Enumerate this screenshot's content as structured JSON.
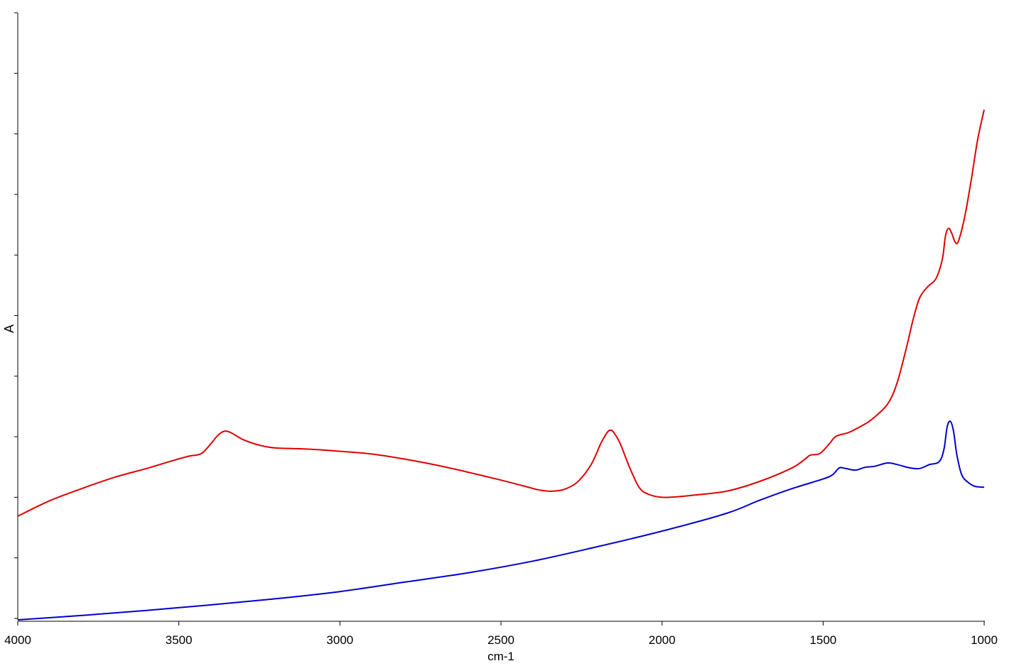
{
  "chart_data": {
    "type": "line",
    "title": "",
    "xlabel": "cm-1",
    "ylabel": "A",
    "x_reversed": true,
    "xlim": [
      4000,
      1000
    ],
    "ylim": [
      0,
      1
    ],
    "x_ticks": [
      "4000",
      "3500",
      "3000",
      "2500",
      "2000",
      "1500",
      "1000"
    ],
    "y_tick_labels_shown": false,
    "y_tick_count": 11,
    "grid": false,
    "legend": "none",
    "series": [
      {
        "color": "#e00000",
        "points": [
          [
            4000,
            0.187
          ],
          [
            3900,
            0.215
          ],
          [
            3800,
            0.237
          ],
          [
            3700,
            0.257
          ],
          [
            3600,
            0.273
          ],
          [
            3520,
            0.287
          ],
          [
            3470,
            0.295
          ],
          [
            3430,
            0.3
          ],
          [
            3400,
            0.318
          ],
          [
            3380,
            0.332
          ],
          [
            3360,
            0.34
          ],
          [
            3340,
            0.338
          ],
          [
            3300,
            0.325
          ],
          [
            3250,
            0.315
          ],
          [
            3200,
            0.31
          ],
          [
            3100,
            0.308
          ],
          [
            3000,
            0.304
          ],
          [
            2900,
            0.299
          ],
          [
            2800,
            0.29
          ],
          [
            2700,
            0.279
          ],
          [
            2600,
            0.266
          ],
          [
            2500,
            0.252
          ],
          [
            2420,
            0.24
          ],
          [
            2380,
            0.234
          ],
          [
            2340,
            0.232
          ],
          [
            2300,
            0.236
          ],
          [
            2260,
            0.25
          ],
          [
            2220,
            0.28
          ],
          [
            2190,
            0.318
          ],
          [
            2170,
            0.338
          ],
          [
            2160,
            0.342
          ],
          [
            2150,
            0.338
          ],
          [
            2130,
            0.318
          ],
          [
            2100,
            0.274
          ],
          [
            2070,
            0.238
          ],
          [
            2040,
            0.226
          ],
          [
            2000,
            0.221
          ],
          [
            1950,
            0.222
          ],
          [
            1900,
            0.225
          ],
          [
            1800,
            0.232
          ],
          [
            1700,
            0.249
          ],
          [
            1600,
            0.273
          ],
          [
            1560,
            0.288
          ],
          [
            1540,
            0.297
          ],
          [
            1510,
            0.3
          ],
          [
            1480,
            0.318
          ],
          [
            1460,
            0.331
          ],
          [
            1420,
            0.338
          ],
          [
            1380,
            0.35
          ],
          [
            1350,
            0.361
          ],
          [
            1300,
            0.389
          ],
          [
            1270,
            0.428
          ],
          [
            1240,
            0.494
          ],
          [
            1220,
            0.543
          ],
          [
            1200,
            0.581
          ],
          [
            1175,
            0.601
          ],
          [
            1150,
            0.615
          ],
          [
            1130,
            0.65
          ],
          [
            1120,
            0.693
          ],
          [
            1110,
            0.706
          ],
          [
            1100,
            0.696
          ],
          [
            1090,
            0.681
          ],
          [
            1080,
            0.683
          ],
          [
            1060,
            0.728
          ],
          [
            1040,
            0.794
          ],
          [
            1020,
            0.867
          ],
          [
            1000,
            0.92
          ]
        ]
      },
      {
        "color": "#0000cc",
        "points": [
          [
            4000,
            0.0
          ],
          [
            3800,
            0.008
          ],
          [
            3600,
            0.017
          ],
          [
            3400,
            0.027
          ],
          [
            3200,
            0.038
          ],
          [
            3000,
            0.051
          ],
          [
            2800,
            0.068
          ],
          [
            2600,
            0.085
          ],
          [
            2400,
            0.106
          ],
          [
            2200,
            0.132
          ],
          [
            2000,
            0.16
          ],
          [
            1800,
            0.192
          ],
          [
            1700,
            0.215
          ],
          [
            1600,
            0.236
          ],
          [
            1500,
            0.254
          ],
          [
            1470,
            0.262
          ],
          [
            1450,
            0.274
          ],
          [
            1430,
            0.273
          ],
          [
            1400,
            0.27
          ],
          [
            1370,
            0.275
          ],
          [
            1340,
            0.277
          ],
          [
            1300,
            0.283
          ],
          [
            1270,
            0.28
          ],
          [
            1230,
            0.274
          ],
          [
            1200,
            0.273
          ],
          [
            1170,
            0.28
          ],
          [
            1140,
            0.285
          ],
          [
            1125,
            0.307
          ],
          [
            1115,
            0.348
          ],
          [
            1105,
            0.358
          ],
          [
            1095,
            0.34
          ],
          [
            1085,
            0.298
          ],
          [
            1070,
            0.262
          ],
          [
            1050,
            0.248
          ],
          [
            1030,
            0.241
          ],
          [
            1000,
            0.239
          ]
        ]
      }
    ]
  }
}
